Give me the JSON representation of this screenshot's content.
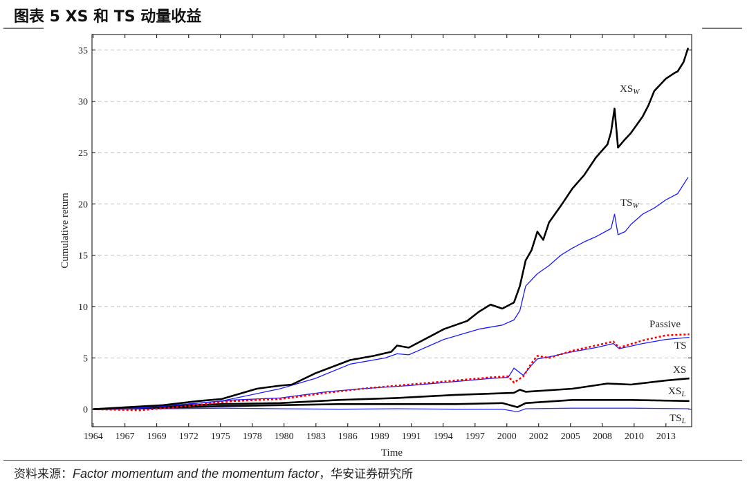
{
  "title": "图表 5 XS 和 TS 动量收益",
  "source": {
    "prefix": "资料来源：",
    "paper": "Factor momentum and the momentum factor",
    "suffix": "，华安证券研究所"
  },
  "chart_data": {
    "type": "line",
    "title": "",
    "xlabel": "Time",
    "ylabel": "Cumulative return",
    "xlim": [
      1963.9,
      2015.2
    ],
    "ylim": [
      -1.7,
      36.5
    ],
    "yticks": [
      0,
      5,
      10,
      15,
      20,
      25,
      30,
      35
    ],
    "xticks": [
      1964,
      1966.72,
      1969.44,
      1972.17,
      1974.89,
      1977.61,
      1980.33,
      1983.06,
      1985.78,
      1988.5,
      1991.22,
      1993.94,
      1996.67,
      1999.39,
      2002.11,
      2004.83,
      2007.56,
      2010.28,
      2013
    ],
    "xtick_labels": [
      "1964",
      "1967",
      "1969",
      "1972",
      "1975",
      "1978",
      "1980",
      "1983",
      "1986",
      "1989",
      "1991",
      "1994",
      "1997",
      "2000",
      "2002",
      "2005",
      "2008",
      "2010",
      "2013"
    ],
    "grid": "horizontal-dashed",
    "series": [
      {
        "name": "XS_W",
        "label": "XS",
        "sub": "W",
        "color": "#000000",
        "width": 2.6,
        "dash": "",
        "x": [
          1964,
          1967,
          1970,
          1973,
          1975,
          1978,
          1980,
          1981,
          1983,
          1986,
          1988,
          1989.5,
          1990,
          1991,
          1993,
          1994,
          1996,
          1997,
          1998,
          1999,
          2000,
          2000.5,
          2001,
          2001.5,
          2002,
          2002.5,
          2003,
          2004,
          2005,
          2006,
          2007,
          2008,
          2008.3,
          2008.6,
          2008.9,
          2009.5,
          2010,
          2011,
          2011.5,
          2012,
          2013,
          2013.8,
          2014,
          2014.5,
          2014.9
        ],
        "y": [
          0,
          0.2,
          0.4,
          0.8,
          1.0,
          2.0,
          2.3,
          2.4,
          3.5,
          4.8,
          5.2,
          5.6,
          6.2,
          6.0,
          7.2,
          7.8,
          8.6,
          9.5,
          10.2,
          9.8,
          10.4,
          12.0,
          14.5,
          15.5,
          17.3,
          16.5,
          18.2,
          19.8,
          21.5,
          22.8,
          24.5,
          25.8,
          27.0,
          29.3,
          25.5,
          26.3,
          26.9,
          28.5,
          29.6,
          31.0,
          32.2,
          32.8,
          32.9,
          33.8,
          35.2
        ]
      },
      {
        "name": "TS_W",
        "label": "TS",
        "sub": "W",
        "color": "#1a1aff",
        "width": 1.3,
        "dash": "",
        "x": [
          1964,
          1970,
          1975,
          1980,
          1983,
          1986,
          1989,
          1990,
          1991,
          1994,
          1997,
          1999,
          2000,
          2000.5,
          2001,
          2002,
          2003,
          2004,
          2005,
          2006,
          2007,
          2008.3,
          2008.6,
          2008.9,
          2009.5,
          2010,
          2011,
          2012,
          2013,
          2014,
          2014.9
        ],
        "y": [
          0,
          0.3,
          0.8,
          2.0,
          3.0,
          4.4,
          5.0,
          5.4,
          5.3,
          6.8,
          7.8,
          8.2,
          8.7,
          9.6,
          12.0,
          13.2,
          14.0,
          15.0,
          15.7,
          16.3,
          16.8,
          17.6,
          19.0,
          17.0,
          17.3,
          18.0,
          19.0,
          19.6,
          20.4,
          21.0,
          22.6
        ]
      },
      {
        "name": "Passive",
        "label": "Passive",
        "sub": "",
        "color": "#ff0000",
        "width": 2.6,
        "dash": "3,3",
        "x": [
          1964,
          1968,
          1972,
          1976,
          1980,
          1984,
          1987,
          1991,
          1995,
          1998,
          1999.5,
          2000,
          2000.8,
          2001.5,
          2002,
          2003,
          2005,
          2007,
          2008.5,
          2009,
          2011,
          2013,
          2015
        ],
        "y": [
          0,
          -0.1,
          0.3,
          0.8,
          1.0,
          1.6,
          2.0,
          2.4,
          2.8,
          3.1,
          3.2,
          2.6,
          3.2,
          4.5,
          5.2,
          5.0,
          5.7,
          6.2,
          6.6,
          6.0,
          6.7,
          7.2,
          7.3
        ]
      },
      {
        "name": "TS",
        "label": "TS",
        "sub": "",
        "color": "#1a1aff",
        "width": 1.3,
        "dash": "",
        "x": [
          1964,
          1968,
          1972,
          1976,
          1980,
          1984,
          1987,
          1991,
          1995,
          1998,
          1999.5,
          2000,
          2000.8,
          2001.5,
          2002,
          2003,
          2005,
          2007,
          2008.5,
          2009,
          2011,
          2013,
          2015
        ],
        "y": [
          0,
          0.1,
          0.5,
          0.9,
          1.1,
          1.7,
          2.0,
          2.3,
          2.7,
          3.0,
          3.1,
          4.0,
          3.3,
          4.3,
          4.9,
          5.1,
          5.6,
          6.0,
          6.4,
          5.9,
          6.4,
          6.8,
          7.0
        ]
      },
      {
        "name": "XS",
        "label": "XS",
        "sub": "",
        "color": "#000000",
        "width": 2.6,
        "dash": "",
        "x": [
          1964,
          1970,
          1975,
          1980,
          1985,
          1990,
          1995,
          2000,
          2000.5,
          2001,
          2005,
          2008,
          2010,
          2013,
          2015
        ],
        "y": [
          0,
          0.3,
          0.5,
          0.6,
          0.9,
          1.1,
          1.4,
          1.6,
          1.9,
          1.7,
          2.0,
          2.5,
          2.4,
          2.8,
          3.0
        ]
      },
      {
        "name": "XS_L",
        "label": "XS",
        "sub": "L",
        "color": "#000000",
        "width": 2.6,
        "dash": "",
        "x": [
          1964,
          1970,
          1975,
          1980,
          1985,
          1990,
          1995,
          1999,
          2000.3,
          2001,
          2005,
          2010,
          2015
        ],
        "y": [
          0,
          0.15,
          0.3,
          0.4,
          0.5,
          0.5,
          0.5,
          0.6,
          0.2,
          0.6,
          0.9,
          0.9,
          0.8
        ]
      },
      {
        "name": "TS_L",
        "label": "TS",
        "sub": "L",
        "color": "#3333ff",
        "width": 1.3,
        "dash": "",
        "x": [
          1964,
          1970,
          1975,
          1980,
          1985,
          1990,
          1995,
          1999,
          2000.3,
          2001,
          2005,
          2010,
          2015
        ],
        "y": [
          0,
          0.05,
          0.1,
          0.05,
          0.0,
          0.05,
          0.0,
          0.0,
          -0.25,
          0.05,
          0.1,
          0.1,
          0.05
        ]
      }
    ]
  }
}
